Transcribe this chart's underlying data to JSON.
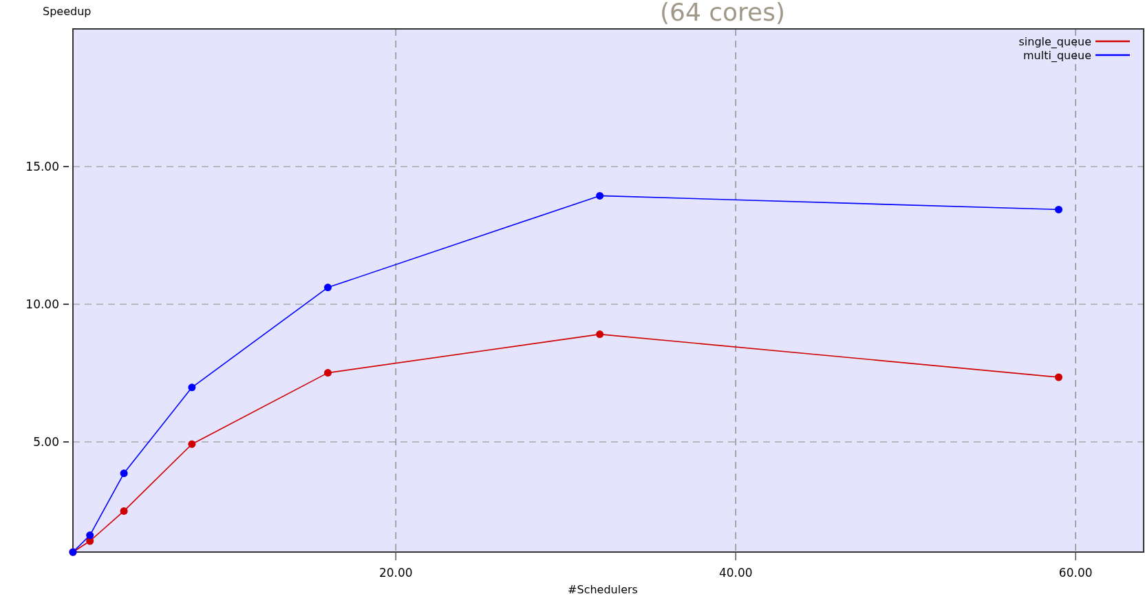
{
  "chart_data": {
    "type": "line",
    "title": "(64 cores)",
    "xlabel": "#Schedulers",
    "ylabel": "Speedup",
    "x": [
      1,
      2,
      4,
      8,
      16,
      32,
      59
    ],
    "series": [
      {
        "name": "single_queue",
        "color": "#d00000",
        "values": [
          1,
          1.4,
          2.49,
          4.92,
          7.51,
          8.91,
          7.35
        ]
      },
      {
        "name": "multi_queue",
        "color": "#0000ff",
        "values": [
          1,
          1.61,
          3.86,
          6.98,
          10.61,
          13.94,
          13.44
        ]
      }
    ],
    "xlim": [
      1,
      64
    ],
    "ylim": [
      1,
      20
    ],
    "xticks": [
      {
        "value": 20,
        "label": "20.00"
      },
      {
        "value": 40,
        "label": "40.00"
      },
      {
        "value": 60,
        "label": "60.00"
      }
    ],
    "yticks": [
      {
        "value": 5,
        "label": "5.00"
      },
      {
        "value": 10,
        "label": "10.00"
      },
      {
        "value": 15,
        "label": "15.00"
      }
    ],
    "grid": true,
    "legend": "top right",
    "marker": "circle",
    "line_style": "solid"
  }
}
